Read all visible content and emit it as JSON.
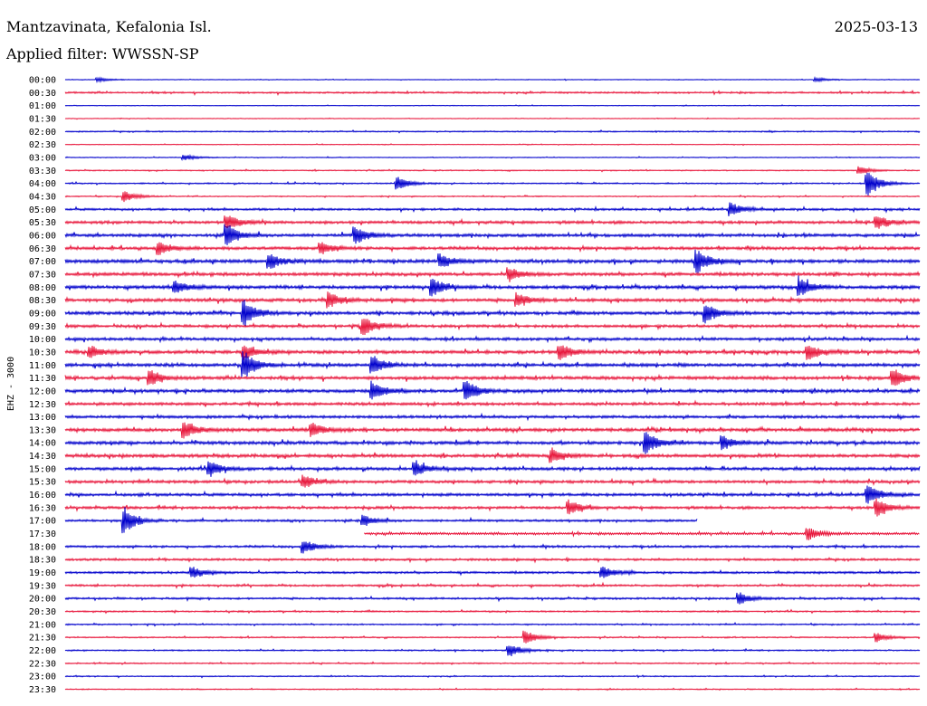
{
  "header": {
    "station": "Mantzavinata, Kefalonia Isl.",
    "date": "2025-03-13",
    "filter": "Applied filter: WWSSN-SP"
  },
  "chart_data": {
    "type": "line",
    "title": "Mantzavinata, Kefalonia Isl.",
    "ylabel": "EHZ - 3000",
    "xlabel": "",
    "trace_minutes": 30,
    "row_labels": [
      "00:00",
      "00:30",
      "01:00",
      "01:30",
      "02:00",
      "02:30",
      "03:00",
      "03:30",
      "04:00",
      "04:30",
      "05:00",
      "05:30",
      "06:00",
      "06:30",
      "07:00",
      "07:30",
      "08:00",
      "08:30",
      "09:00",
      "09:30",
      "10:00",
      "10:30",
      "11:00",
      "11:30",
      "12:00",
      "12:30",
      "13:00",
      "13:30",
      "14:00",
      "14:30",
      "15:00",
      "15:30",
      "16:00",
      "16:30",
      "17:00",
      "17:30",
      "18:00",
      "18:30",
      "19:00",
      "19:30",
      "20:00",
      "20:30",
      "21:00",
      "21:30",
      "22:00",
      "22:30",
      "23:00",
      "23:30"
    ],
    "trace_colors": [
      "#0000cc",
      "#e8173c"
    ],
    "gap": {
      "row": "17:00",
      "start_fraction": 0.74,
      "end_fraction": 1.0
    },
    "late_start": {
      "row": "17:30",
      "start_fraction": 0.35
    },
    "noise_levels": [
      0.3,
      0.8,
      0.3,
      0.3,
      0.6,
      0.3,
      0.35,
      0.5,
      0.6,
      0.5,
      1.0,
      1.3,
      1.4,
      1.4,
      1.6,
      1.5,
      1.5,
      1.5,
      1.5,
      1.3,
      1.3,
      1.5,
      1.5,
      1.5,
      1.5,
      1.3,
      1.3,
      1.5,
      1.5,
      1.5,
      1.4,
      1.3,
      1.3,
      1.2,
      1.0,
      1.0,
      1.0,
      1.0,
      1.0,
      0.9,
      0.9,
      0.7,
      0.6,
      0.6,
      0.6,
      0.6,
      0.5,
      0.5
    ],
    "events": [
      {
        "row": "00:00",
        "x": 0.04,
        "amp": 2
      },
      {
        "row": "00:00",
        "x": 0.88,
        "amp": 2
      },
      {
        "row": "03:00",
        "x": 0.14,
        "amp": 3
      },
      {
        "row": "03:30",
        "x": 0.93,
        "amp": 4
      },
      {
        "row": "04:00",
        "x": 0.39,
        "amp": 7
      },
      {
        "row": "04:00",
        "x": 0.94,
        "amp": 14
      },
      {
        "row": "04:30",
        "x": 0.07,
        "amp": 6
      },
      {
        "row": "05:00",
        "x": 0.78,
        "amp": 7
      },
      {
        "row": "05:30",
        "x": 0.19,
        "amp": 8
      },
      {
        "row": "05:30",
        "x": 0.95,
        "amp": 8
      },
      {
        "row": "06:00",
        "x": 0.19,
        "amp": 12
      },
      {
        "row": "06:00",
        "x": 0.34,
        "amp": 10
      },
      {
        "row": "06:30",
        "x": 0.11,
        "amp": 7
      },
      {
        "row": "06:30",
        "x": 0.3,
        "amp": 6
      },
      {
        "row": "07:00",
        "x": 0.24,
        "amp": 8
      },
      {
        "row": "07:00",
        "x": 0.44,
        "amp": 7
      },
      {
        "row": "07:00",
        "x": 0.74,
        "amp": 12
      },
      {
        "row": "07:30",
        "x": 0.52,
        "amp": 7
      },
      {
        "row": "08:00",
        "x": 0.13,
        "amp": 6
      },
      {
        "row": "08:00",
        "x": 0.43,
        "amp": 9
      },
      {
        "row": "08:00",
        "x": 0.86,
        "amp": 10
      },
      {
        "row": "08:30",
        "x": 0.31,
        "amp": 8
      },
      {
        "row": "08:30",
        "x": 0.53,
        "amp": 7
      },
      {
        "row": "09:00",
        "x": 0.21,
        "amp": 14
      },
      {
        "row": "09:00",
        "x": 0.75,
        "amp": 10
      },
      {
        "row": "09:30",
        "x": 0.35,
        "amp": 10
      },
      {
        "row": "10:30",
        "x": 0.03,
        "amp": 6
      },
      {
        "row": "10:30",
        "x": 0.21,
        "amp": 8
      },
      {
        "row": "10:30",
        "x": 0.58,
        "amp": 9
      },
      {
        "row": "10:30",
        "x": 0.87,
        "amp": 8
      },
      {
        "row": "11:00",
        "x": 0.21,
        "amp": 15
      },
      {
        "row": "11:00",
        "x": 0.36,
        "amp": 10
      },
      {
        "row": "11:30",
        "x": 0.1,
        "amp": 8
      },
      {
        "row": "11:30",
        "x": 0.97,
        "amp": 10
      },
      {
        "row": "12:00",
        "x": 0.36,
        "amp": 10
      },
      {
        "row": "12:00",
        "x": 0.47,
        "amp": 12
      },
      {
        "row": "13:30",
        "x": 0.14,
        "amp": 9
      },
      {
        "row": "13:30",
        "x": 0.29,
        "amp": 7
      },
      {
        "row": "14:00",
        "x": 0.68,
        "amp": 12
      },
      {
        "row": "14:00",
        "x": 0.77,
        "amp": 7
      },
      {
        "row": "14:30",
        "x": 0.57,
        "amp": 7
      },
      {
        "row": "15:00",
        "x": 0.17,
        "amp": 8
      },
      {
        "row": "15:00",
        "x": 0.41,
        "amp": 7
      },
      {
        "row": "15:30",
        "x": 0.28,
        "amp": 7
      },
      {
        "row": "16:00",
        "x": 0.94,
        "amp": 10
      },
      {
        "row": "16:30",
        "x": 0.95,
        "amp": 10
      },
      {
        "row": "16:30",
        "x": 0.59,
        "amp": 8
      },
      {
        "row": "17:00",
        "x": 0.07,
        "amp": 14
      },
      {
        "row": "17:00",
        "x": 0.35,
        "amp": 6
      },
      {
        "row": "17:30",
        "x": 0.87,
        "amp": 7
      },
      {
        "row": "18:00",
        "x": 0.28,
        "amp": 7
      },
      {
        "row": "19:00",
        "x": 0.15,
        "amp": 6
      },
      {
        "row": "19:00",
        "x": 0.63,
        "amp": 6
      },
      {
        "row": "20:00",
        "x": 0.79,
        "amp": 6
      },
      {
        "row": "21:30",
        "x": 0.54,
        "amp": 7
      },
      {
        "row": "21:30",
        "x": 0.95,
        "amp": 5
      },
      {
        "row": "22:00",
        "x": 0.52,
        "amp": 7
      }
    ]
  }
}
